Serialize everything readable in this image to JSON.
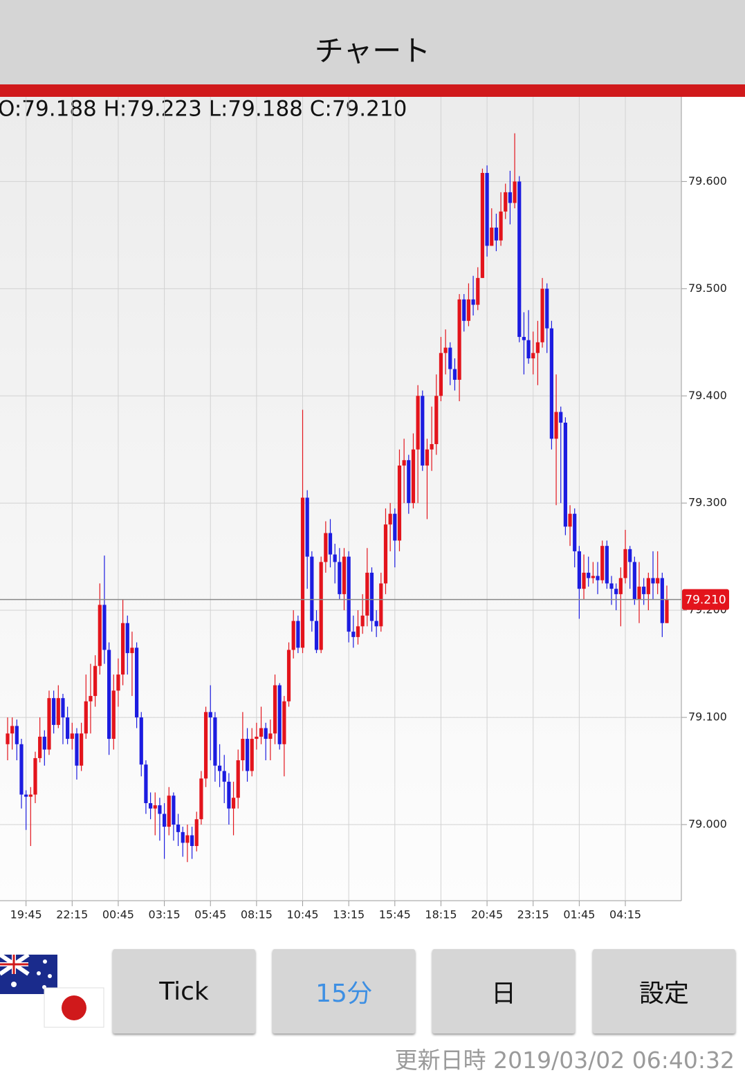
{
  "header": {
    "title": "チャート"
  },
  "ohlc_text": "O:79.188 H:79.223 L:79.188 C:79.210",
  "chart_data": {
    "type": "candlestick",
    "up_color": "#e3141c",
    "down_color": "#1c1ce0",
    "grid": true,
    "ylim": [
      78.929,
      79.679
    ],
    "yticks": [
      {
        "value": 79.0,
        "label": "79.000"
      },
      {
        "value": 79.1,
        "label": "79.100"
      },
      {
        "value": 79.2,
        "label": "79.200"
      },
      {
        "value": 79.3,
        "label": "79.300"
      },
      {
        "value": 79.4,
        "label": "79.400"
      },
      {
        "value": 79.5,
        "label": "79.500"
      },
      {
        "value": 79.6,
        "label": "79.600"
      }
    ],
    "current_price": {
      "value": 79.21,
      "label": "79.210"
    },
    "categories": [
      null,
      null,
      null,
      null,
      "19:45",
      null,
      null,
      null,
      null,
      null,
      null,
      null,
      null,
      null,
      "22:15",
      null,
      null,
      null,
      null,
      null,
      null,
      null,
      null,
      null,
      "00:45",
      null,
      null,
      null,
      null,
      null,
      null,
      null,
      null,
      null,
      "03:15",
      null,
      null,
      null,
      null,
      null,
      null,
      null,
      null,
      null,
      "05:45",
      null,
      null,
      null,
      null,
      null,
      null,
      null,
      null,
      null,
      "08:15",
      null,
      null,
      null,
      null,
      null,
      null,
      null,
      null,
      null,
      "10:45",
      null,
      null,
      null,
      null,
      null,
      null,
      null,
      null,
      null,
      "13:15",
      null,
      null,
      null,
      null,
      null,
      null,
      null,
      null,
      null,
      "15:45",
      null,
      null,
      null,
      null,
      null,
      null,
      null,
      null,
      null,
      "18:15",
      null,
      null,
      null,
      null,
      null,
      null,
      null,
      null,
      null,
      "20:45",
      null,
      null,
      null,
      null,
      null,
      null,
      null,
      null,
      null,
      "23:15",
      null,
      null,
      null,
      null,
      null,
      null,
      null,
      null,
      null,
      "01:45",
      null,
      null,
      null,
      null,
      null,
      null,
      null,
      null,
      null,
      "04:15",
      null,
      null,
      null,
      null,
      null,
      null,
      null,
      null,
      null
    ],
    "candles": [
      [
        79.075,
        79.1,
        79.06,
        79.085
      ],
      [
        79.085,
        79.1,
        79.07,
        79.092
      ],
      [
        79.092,
        79.098,
        79.06,
        79.075
      ],
      [
        79.075,
        79.08,
        79.015,
        79.028
      ],
      [
        79.028,
        79.032,
        78.995,
        79.026
      ],
      [
        79.026,
        79.035,
        78.98,
        79.028
      ],
      [
        79.028,
        79.068,
        79.02,
        79.062
      ],
      [
        79.062,
        79.1,
        79.058,
        79.082
      ],
      [
        79.082,
        79.088,
        79.055,
        79.07
      ],
      [
        79.07,
        79.125,
        79.065,
        79.118
      ],
      [
        79.118,
        79.125,
        79.085,
        79.093
      ],
      [
        79.093,
        79.13,
        79.09,
        79.118
      ],
      [
        79.118,
        79.122,
        79.075,
        79.1
      ],
      [
        79.1,
        79.11,
        79.075,
        79.08
      ],
      [
        79.08,
        79.095,
        79.07,
        79.085
      ],
      [
        79.085,
        79.09,
        79.042,
        79.055
      ],
      [
        79.055,
        79.095,
        79.05,
        79.085
      ],
      [
        79.085,
        79.14,
        79.08,
        79.115
      ],
      [
        79.115,
        79.15,
        79.085,
        79.12
      ],
      [
        79.12,
        79.158,
        79.11,
        79.148
      ],
      [
        79.148,
        79.225,
        79.14,
        79.205
      ],
      [
        79.205,
        79.251,
        79.15,
        79.163
      ],
      [
        79.163,
        79.17,
        79.065,
        79.08
      ],
      [
        79.08,
        79.14,
        79.07,
        79.125
      ],
      [
        79.125,
        79.155,
        79.11,
        79.14
      ],
      [
        79.14,
        79.21,
        79.13,
        79.188
      ],
      [
        79.188,
        79.195,
        79.14,
        79.16
      ],
      [
        79.16,
        79.18,
        79.12,
        79.165
      ],
      [
        79.165,
        79.17,
        79.09,
        79.1
      ],
      [
        79.1,
        79.105,
        79.045,
        79.056
      ],
      [
        79.056,
        79.06,
        79.01,
        79.02
      ],
      [
        79.02,
        79.03,
        79.005,
        79.015
      ],
      [
        79.015,
        79.03,
        78.99,
        79.018
      ],
      [
        79.018,
        79.025,
        78.985,
        79.01
      ],
      [
        79.01,
        79.02,
        78.968,
        78.998
      ],
      [
        78.998,
        79.035,
        78.99,
        79.027
      ],
      [
        79.027,
        79.03,
        78.985,
        79.0
      ],
      [
        79.0,
        79.01,
        78.98,
        78.993
      ],
      [
        78.993,
        78.998,
        78.97,
        78.983
      ],
      [
        78.983,
        79.0,
        78.965,
        78.99
      ],
      [
        78.99,
        78.998,
        78.968,
        78.98
      ],
      [
        78.98,
        79.012,
        78.975,
        79.005
      ],
      [
        79.005,
        79.05,
        79.0,
        79.043
      ],
      [
        79.043,
        79.11,
        79.035,
        79.105
      ],
      [
        79.105,
        79.13,
        79.06,
        79.1
      ],
      [
        79.1,
        79.105,
        79.04,
        79.055
      ],
      [
        79.055,
        79.075,
        79.035,
        79.05
      ],
      [
        79.05,
        79.065,
        79.02,
        79.04
      ],
      [
        79.04,
        79.048,
        79.0,
        79.015
      ],
      [
        79.015,
        79.04,
        78.99,
        79.025
      ],
      [
        79.025,
        79.07,
        79.015,
        79.06
      ],
      [
        79.06,
        79.105,
        79.05,
        79.08
      ],
      [
        79.08,
        79.09,
        79.04,
        79.05
      ],
      [
        79.05,
        79.09,
        79.045,
        79.08
      ],
      [
        79.08,
        79.095,
        79.07,
        79.082
      ],
      [
        79.082,
        79.11,
        79.075,
        79.09
      ],
      [
        79.09,
        79.095,
        79.06,
        79.08
      ],
      [
        79.08,
        79.098,
        79.06,
        79.085
      ],
      [
        79.085,
        79.14,
        79.075,
        79.13
      ],
      [
        79.13,
        79.132,
        79.07,
        79.075
      ],
      [
        79.075,
        79.12,
        79.045,
        79.115
      ],
      [
        79.115,
        79.17,
        79.11,
        79.163
      ],
      [
        79.163,
        79.2,
        79.155,
        79.19
      ],
      [
        79.19,
        79.195,
        79.16,
        79.165
      ],
      [
        79.165,
        79.387,
        79.16,
        79.305
      ],
      [
        79.305,
        79.312,
        79.22,
        79.25
      ],
      [
        79.25,
        79.255,
        79.18,
        79.19
      ],
      [
        79.19,
        79.2,
        79.16,
        79.163
      ],
      [
        79.163,
        79.25,
        79.16,
        79.245
      ],
      [
        79.245,
        79.283,
        79.235,
        79.272
      ],
      [
        79.272,
        79.285,
        79.24,
        79.252
      ],
      [
        79.252,
        79.262,
        79.225,
        79.245
      ],
      [
        79.245,
        79.258,
        79.21,
        79.215
      ],
      [
        79.215,
        79.258,
        79.2,
        79.25
      ],
      [
        79.25,
        79.255,
        79.17,
        79.18
      ],
      [
        79.18,
        79.195,
        79.165,
        79.175
      ],
      [
        79.175,
        79.2,
        79.168,
        79.185
      ],
      [
        79.185,
        79.215,
        79.178,
        79.195
      ],
      [
        79.195,
        79.258,
        79.185,
        79.235
      ],
      [
        79.235,
        79.24,
        79.18,
        79.19
      ],
      [
        79.19,
        79.2,
        79.175,
        79.185
      ],
      [
        79.185,
        79.235,
        79.18,
        79.225
      ],
      [
        79.225,
        79.295,
        79.215,
        79.28
      ],
      [
        79.28,
        79.3,
        79.255,
        79.29
      ],
      [
        79.29,
        79.295,
        79.24,
        79.265
      ],
      [
        79.265,
        79.35,
        79.255,
        79.335
      ],
      [
        79.335,
        79.36,
        79.3,
        79.34
      ],
      [
        79.34,
        79.345,
        79.29,
        79.3
      ],
      [
        79.3,
        79.365,
        79.295,
        79.35
      ],
      [
        79.35,
        79.41,
        79.3,
        79.4
      ],
      [
        79.4,
        79.405,
        79.33,
        79.335
      ],
      [
        79.335,
        79.36,
        79.285,
        79.35
      ],
      [
        79.35,
        79.39,
        79.33,
        79.355
      ],
      [
        79.355,
        79.42,
        79.345,
        79.4
      ],
      [
        79.4,
        79.455,
        79.395,
        79.44
      ],
      [
        79.44,
        79.462,
        79.42,
        79.445
      ],
      [
        79.445,
        79.45,
        79.41,
        79.425
      ],
      [
        79.425,
        79.435,
        79.405,
        79.415
      ],
      [
        79.415,
        79.495,
        79.395,
        79.49
      ],
      [
        79.49,
        79.495,
        79.46,
        79.47
      ],
      [
        79.47,
        79.505,
        79.465,
        79.49
      ],
      [
        79.49,
        79.512,
        79.475,
        79.485
      ],
      [
        79.485,
        79.52,
        79.48,
        79.51
      ],
      [
        79.51,
        79.612,
        79.51,
        79.608
      ],
      [
        79.608,
        79.615,
        79.53,
        79.54
      ],
      [
        79.54,
        79.575,
        79.54,
        79.557
      ],
      [
        79.557,
        79.57,
        79.535,
        79.545
      ],
      [
        79.545,
        79.59,
        79.54,
        79.572
      ],
      [
        79.572,
        79.598,
        79.565,
        79.59
      ],
      [
        79.59,
        79.61,
        79.56,
        79.58
      ],
      [
        79.58,
        79.645,
        79.575,
        79.6
      ],
      [
        79.6,
        79.605,
        79.45,
        79.455
      ],
      [
        79.455,
        79.478,
        79.42,
        79.452
      ],
      [
        79.452,
        79.48,
        79.43,
        79.435
      ],
      [
        79.435,
        79.46,
        79.42,
        79.44
      ],
      [
        79.44,
        79.47,
        79.41,
        79.45
      ],
      [
        79.45,
        79.51,
        79.445,
        79.5
      ],
      [
        79.5,
        79.505,
        79.44,
        79.463
      ],
      [
        79.463,
        79.47,
        79.35,
        79.36
      ],
      [
        79.36,
        79.42,
        79.298,
        79.385
      ],
      [
        79.385,
        79.39,
        79.3,
        79.375
      ],
      [
        79.375,
        79.38,
        79.27,
        79.278
      ],
      [
        79.278,
        79.298,
        79.26,
        79.29
      ],
      [
        79.29,
        79.295,
        79.24,
        79.255
      ],
      [
        79.255,
        79.26,
        79.192,
        79.22
      ],
      [
        79.22,
        79.252,
        79.21,
        79.235
      ],
      [
        79.235,
        79.25,
        79.222,
        79.23
      ],
      [
        79.23,
        79.245,
        79.225,
        79.232
      ],
      [
        79.232,
        79.245,
        79.215,
        79.228
      ],
      [
        79.228,
        79.265,
        79.225,
        79.26
      ],
      [
        79.26,
        79.265,
        79.22,
        79.225
      ],
      [
        79.225,
        79.232,
        79.205,
        79.22
      ],
      [
        79.22,
        79.225,
        79.2,
        79.215
      ],
      [
        79.215,
        79.24,
        79.185,
        79.23
      ],
      [
        79.23,
        79.275,
        79.225,
        79.257
      ],
      [
        79.257,
        79.26,
        79.22,
        79.245
      ],
      [
        79.245,
        79.25,
        79.205,
        79.21
      ],
      [
        79.21,
        79.245,
        79.188,
        79.222
      ],
      [
        79.222,
        79.23,
        79.205,
        79.215
      ],
      [
        79.215,
        79.235,
        79.2,
        79.23
      ],
      [
        79.23,
        79.255,
        79.21,
        79.225
      ],
      [
        79.225,
        79.255,
        79.215,
        79.23
      ],
      [
        79.23,
        79.235,
        79.175,
        79.188
      ],
      [
        79.188,
        79.223,
        79.188,
        79.21
      ]
    ]
  },
  "buttons": [
    "Tick",
    "15分",
    "日",
    "設定"
  ],
  "footer": {
    "text": "更新日時 2019/03/02 06:40:32"
  }
}
